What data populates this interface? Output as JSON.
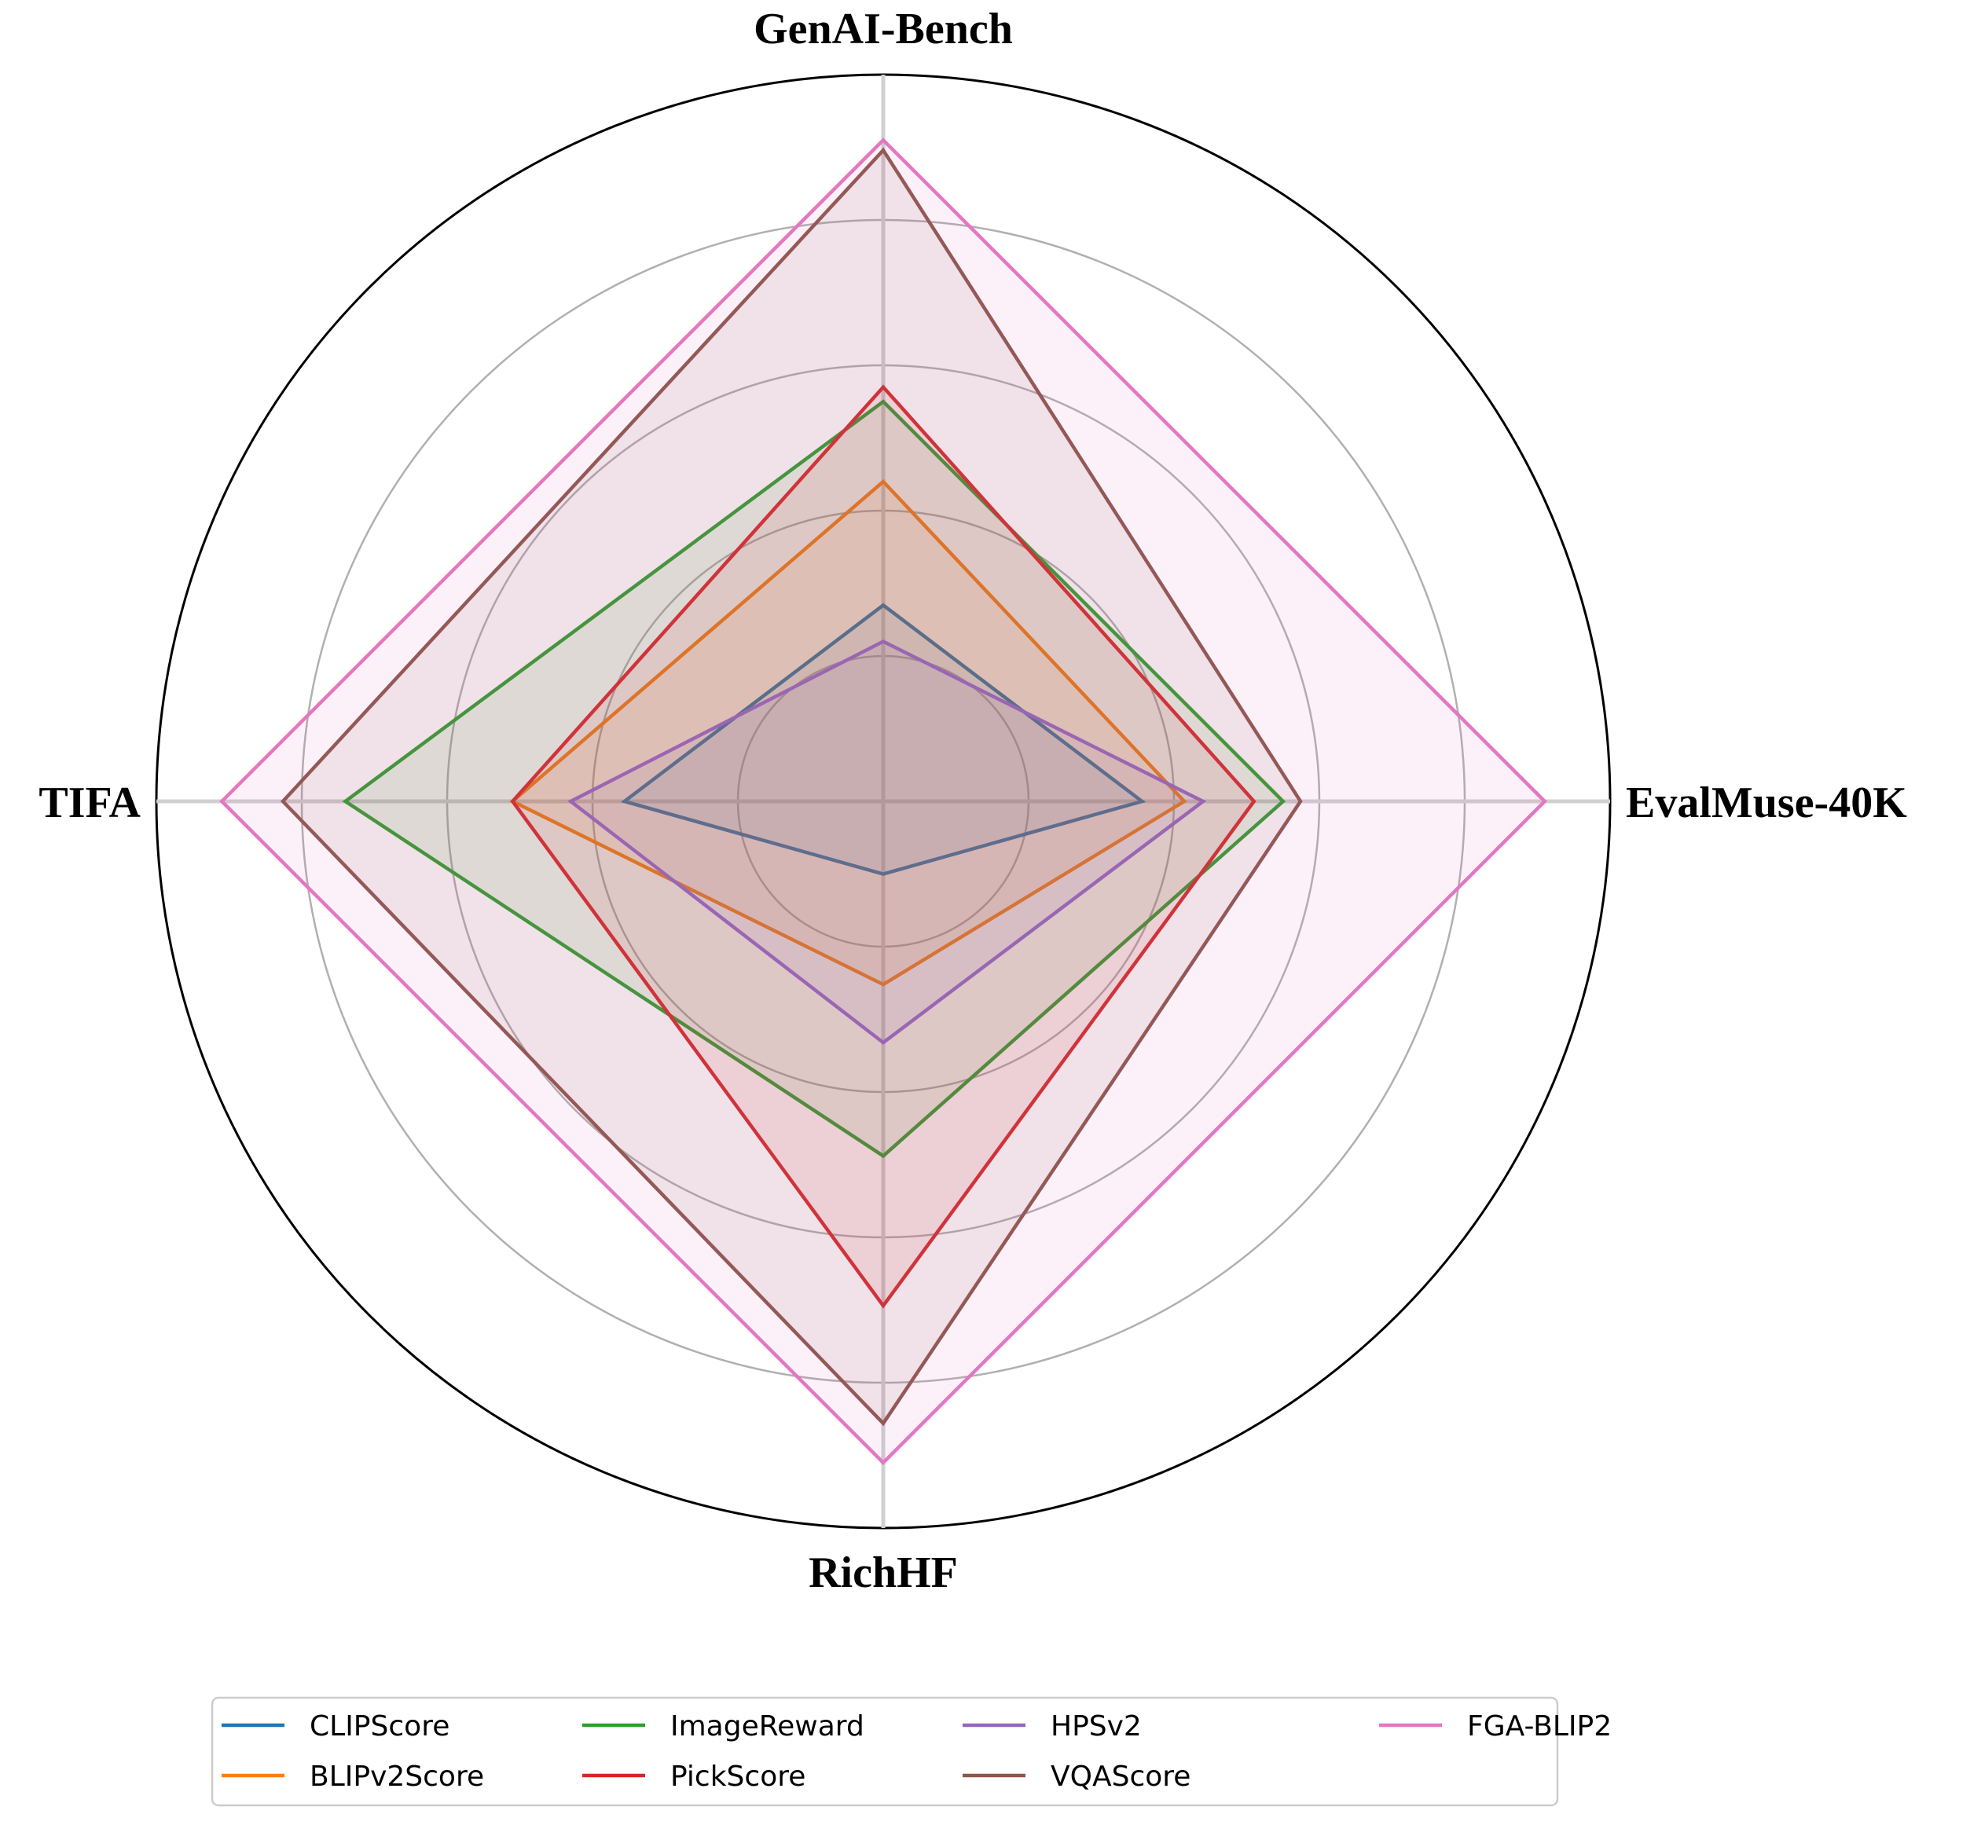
{
  "chart_data": {
    "type": "radar",
    "title": "",
    "axes": [
      "GenAI-Bench",
      "EvalMuse-40K",
      "RichHF",
      "TIFA"
    ],
    "rmax": 5,
    "ring_values": [
      1,
      2,
      3,
      4,
      5
    ],
    "grid": true,
    "legend_position": "bottom",
    "series": [
      {
        "name": "CLIPScore",
        "color": "#1f77b4",
        "values": [
          1.35,
          1.78,
          0.5,
          1.78
        ]
      },
      {
        "name": "BLIPv2Score",
        "color": "#ff7f0e",
        "values": [
          2.2,
          2.07,
          1.26,
          2.55
        ]
      },
      {
        "name": "ImageReward",
        "color": "#2ca02c",
        "values": [
          2.75,
          2.75,
          2.44,
          3.7
        ]
      },
      {
        "name": "PickScore",
        "color": "#d62728",
        "values": [
          2.85,
          2.55,
          3.47,
          2.55
        ]
      },
      {
        "name": "HPSv2",
        "color": "#9467bd",
        "values": [
          1.1,
          2.2,
          1.66,
          2.15
        ]
      },
      {
        "name": "VQAScore",
        "color": "#8c564b",
        "values": [
          4.48,
          2.87,
          4.28,
          4.13
        ]
      },
      {
        "name": "FGA-BLIP2",
        "color": "#e377c2",
        "values": [
          4.55,
          4.55,
          4.55,
          4.55
        ]
      }
    ]
  }
}
